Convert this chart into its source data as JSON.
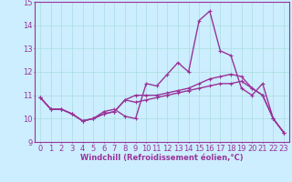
{
  "xlabel": "Windchill (Refroidissement éolien,°C)",
  "x": [
    0,
    1,
    2,
    3,
    4,
    5,
    6,
    7,
    8,
    9,
    10,
    11,
    12,
    13,
    14,
    15,
    16,
    17,
    18,
    19,
    20,
    21,
    22,
    23
  ],
  "line1": [
    10.9,
    10.4,
    10.4,
    10.2,
    9.9,
    10.0,
    10.3,
    10.4,
    10.1,
    10.0,
    11.5,
    11.4,
    11.9,
    12.4,
    12.0,
    14.2,
    14.6,
    12.9,
    12.7,
    11.3,
    11.0,
    11.5,
    10.0,
    9.4
  ],
  "line2": [
    10.9,
    10.4,
    10.4,
    10.2,
    9.9,
    10.0,
    10.2,
    10.3,
    10.8,
    11.0,
    11.0,
    11.0,
    11.1,
    11.2,
    11.3,
    11.5,
    11.7,
    11.8,
    11.9,
    11.8,
    11.3,
    11.0,
    10.0,
    9.4
  ],
  "line3": [
    10.9,
    10.4,
    10.4,
    10.2,
    9.9,
    10.0,
    10.2,
    10.3,
    10.8,
    10.7,
    10.8,
    10.9,
    11.0,
    11.1,
    11.2,
    11.3,
    11.4,
    11.5,
    11.5,
    11.6,
    11.3,
    11.0,
    10.0,
    9.4
  ],
  "line_color": "#993399",
  "bg_color": "#cceeff",
  "grid_color": "#aadddd",
  "ylim": [
    9.0,
    15.0
  ],
  "yticks": [
    9,
    10,
    11,
    12,
    13,
    14,
    15
  ],
  "xticks": [
    0,
    1,
    2,
    3,
    4,
    5,
    6,
    7,
    8,
    9,
    10,
    11,
    12,
    13,
    14,
    15,
    16,
    17,
    18,
    19,
    20,
    21,
    22,
    23
  ],
  "xlabel_fontsize": 6,
  "tick_fontsize": 6,
  "line_width": 1.0,
  "marker_size": 2.5
}
